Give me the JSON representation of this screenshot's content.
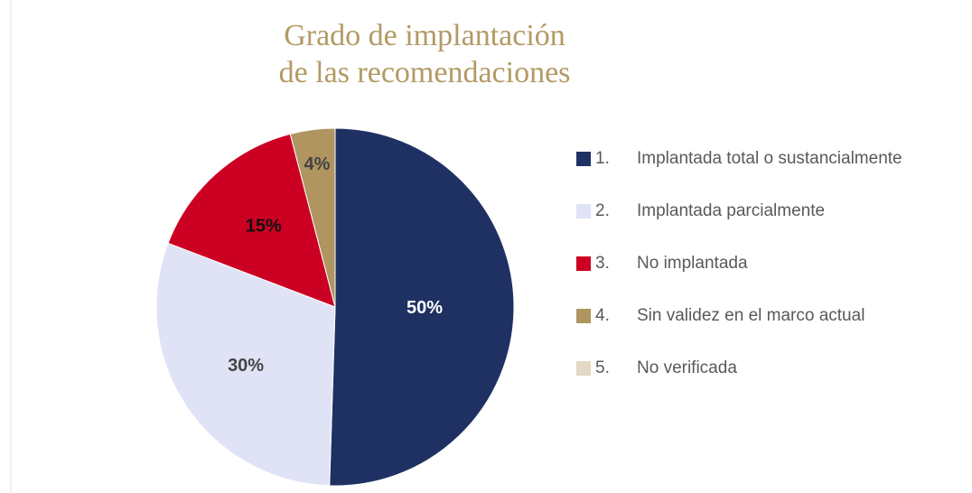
{
  "chart_data": {
    "type": "pie",
    "title": [
      "Grado de implantación",
      "de las recomendaciones"
    ],
    "category_numbers": [
      "1.",
      "2.",
      "3.",
      "4.",
      "5."
    ],
    "categories": [
      "Implantada total o sustancialmente",
      "Implantada parcialmente",
      "No implantada",
      "Sin validez en el marco actual",
      "No verificada"
    ],
    "values": [
      50,
      30,
      15,
      4,
      0
    ],
    "value_labels": [
      "50%",
      "30%",
      "15%",
      "4%",
      null
    ],
    "colors": [
      "#1f3163",
      "#e0e3f5",
      "#cc0022",
      "#b09560",
      "#e2d8c3"
    ],
    "legend": "right"
  }
}
